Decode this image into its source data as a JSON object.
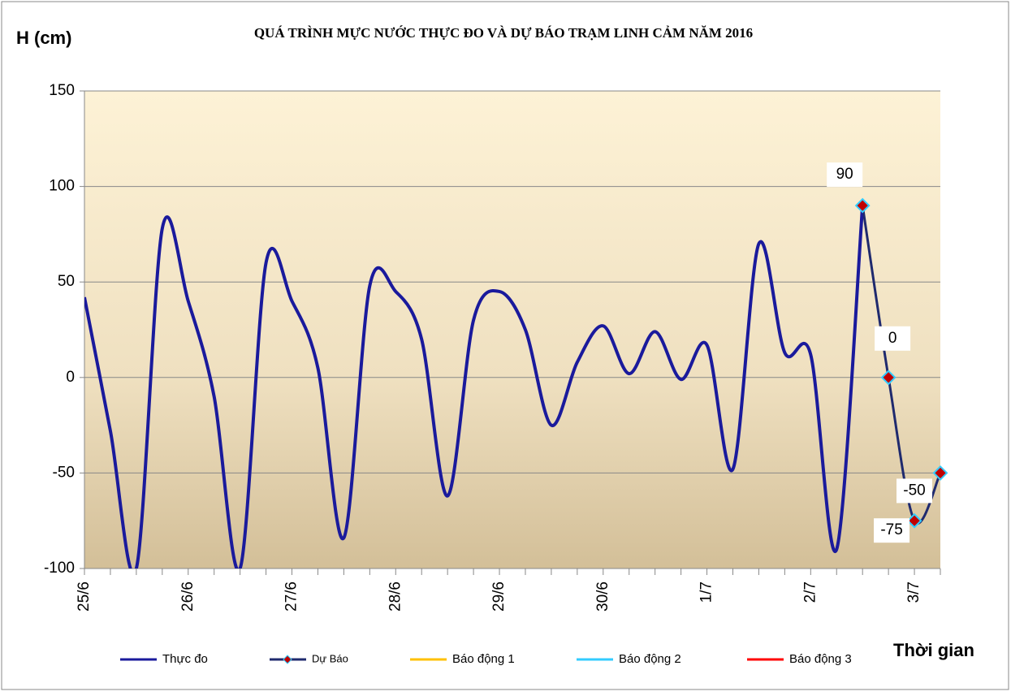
{
  "chart_data": {
    "type": "line",
    "title": "QUÁ TRÌNH  MỰC NƯỚC THỰC ĐO VÀ DỰ BÁO TRẠM LINH CẢM NĂM 2016",
    "y_label": "H (cm)",
    "x_label": "Thời gian",
    "categories": [
      "25/6",
      null,
      null,
      null,
      "26/6",
      null,
      null,
      null,
      "27/6",
      null,
      null,
      null,
      "28/6",
      null,
      null,
      null,
      "29/6",
      null,
      null,
      null,
      "30/6",
      null,
      null,
      null,
      "1/7",
      null,
      null,
      null,
      "2/7",
      null,
      null,
      null,
      "3/7",
      null
    ],
    "series": [
      {
        "name": "Thực đo",
        "color": "#1a1a9c",
        "values": [
          42,
          -28,
          -100,
          78,
          40,
          -10,
          -100,
          60,
          40,
          5,
          -84,
          48,
          45,
          20,
          -62,
          30,
          45,
          25,
          -25,
          8,
          27,
          2,
          24,
          -1,
          17,
          -48,
          70,
          13,
          12,
          -90,
          90,
          null,
          null,
          null
        ]
      },
      {
        "name": "Dự Báo",
        "color": "#1f2a6e",
        "marker": "diamond",
        "values": [
          null,
          null,
          null,
          null,
          null,
          null,
          null,
          null,
          null,
          null,
          null,
          null,
          null,
          null,
          null,
          null,
          null,
          null,
          null,
          null,
          null,
          null,
          null,
          null,
          null,
          null,
          null,
          null,
          null,
          null,
          90,
          0,
          -75,
          -50
        ]
      },
      {
        "name": "Báo động 1",
        "color": "#ffc000"
      },
      {
        "name": "Báo động 2",
        "color": "#33ccff"
      },
      {
        "name": "Báo động 3",
        "color": "#ff0000"
      }
    ],
    "ylim": [
      -100,
      150
    ],
    "yticks": [
      -100,
      -50,
      0,
      50,
      100,
      150
    ],
    "grid": true
  }
}
